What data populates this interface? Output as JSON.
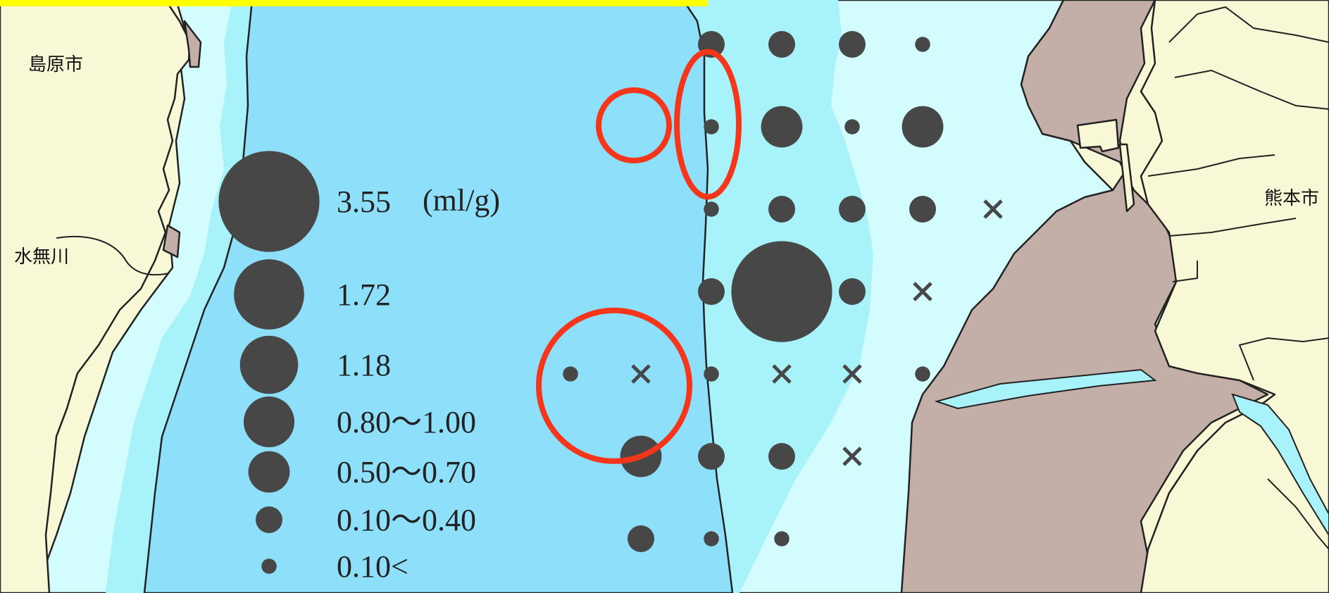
{
  "places": {
    "shimabara": "島原市",
    "mizunashi": "水無川",
    "kumamoto": "熊本市"
  },
  "legend": {
    "unit": "(ml/g)",
    "items": [
      {
        "value": 3.55,
        "label": "3.55"
      },
      {
        "value": 1.72,
        "label": "1.72"
      },
      {
        "value": 1.18,
        "label": "1.18"
      },
      {
        "value": 0.9,
        "label": "0.80〜1.00"
      },
      {
        "value": 0.6,
        "label": "0.50〜0.70"
      },
      {
        "value": 0.25,
        "label": "0.10〜0.40"
      },
      {
        "value": 0.08,
        "label": "0.10<"
      }
    ]
  },
  "stations": [
    {
      "row": 1,
      "col": 5,
      "value": 0.25
    },
    {
      "row": 1,
      "col": 6,
      "value": 0.25
    },
    {
      "row": 1,
      "col": 7,
      "value": 0.25
    },
    {
      "row": 1,
      "col": 8,
      "value": 0.08
    },
    {
      "row": 2,
      "col": 5,
      "value": 0.08
    },
    {
      "row": 2,
      "col": 6,
      "value": 0.6
    },
    {
      "row": 2,
      "col": 7,
      "value": 0.08
    },
    {
      "row": 2,
      "col": 8,
      "value": 0.6
    },
    {
      "row": 3,
      "col": 5,
      "value": 0.08
    },
    {
      "row": 3,
      "col": 6,
      "value": 0.25
    },
    {
      "row": 3,
      "col": 7,
      "value": 0.25
    },
    {
      "row": 3,
      "col": 8,
      "value": 0.25
    },
    {
      "row": 3,
      "col": 9,
      "value": null
    },
    {
      "row": 4,
      "col": 5,
      "value": 0.25
    },
    {
      "row": 4,
      "col": 6,
      "value": 3.55
    },
    {
      "row": 4,
      "col": 7,
      "value": 0.25
    },
    {
      "row": 4,
      "col": 8,
      "value": null
    },
    {
      "row": 5,
      "col": 3,
      "value": 0.08
    },
    {
      "row": 5,
      "col": 4,
      "value": null
    },
    {
      "row": 5,
      "col": 5,
      "value": 0.08
    },
    {
      "row": 5,
      "col": 6,
      "value": null
    },
    {
      "row": 5,
      "col": 7,
      "value": null
    },
    {
      "row": 5,
      "col": 8,
      "value": 0.08
    },
    {
      "row": 6,
      "col": 4,
      "value": 0.6
    },
    {
      "row": 6,
      "col": 5,
      "value": 0.25
    },
    {
      "row": 6,
      "col": 6,
      "value": 0.25
    },
    {
      "row": 6,
      "col": 7,
      "value": null
    },
    {
      "row": 7,
      "col": 4,
      "value": 0.25
    },
    {
      "row": 7,
      "col": 5,
      "value": 0.08
    },
    {
      "row": 7,
      "col": 6,
      "value": 0.08
    }
  ],
  "highlights": [
    {
      "name": "highlight-ellipse-north",
      "shape": "ellipse",
      "row": 1.5,
      "col": 5
    },
    {
      "name": "highlight-circle-empty",
      "shape": "circle",
      "row": 2,
      "col": 3
    },
    {
      "name": "highlight-circle-south",
      "shape": "circle",
      "row": 5.4,
      "col": 3.5
    }
  ],
  "colors": {
    "land": "#f8f7d6",
    "tidal_flat": "#c3afa8",
    "deep_sea": "#8edffa",
    "mid_sea": "#a8f2fa",
    "shallow_sea": "#d2fcfd",
    "marker": "#474747",
    "highlight": "#f5361b",
    "title_bar": "#ffff00"
  }
}
